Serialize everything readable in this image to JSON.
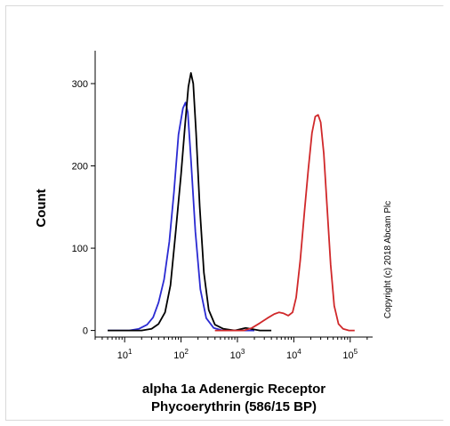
{
  "chart_data": {
    "type": "line",
    "title": "",
    "xlabel_lines": [
      "alpha 1a Adenergic Receptor",
      "Phycoerythrin (586/15 BP)"
    ],
    "ylabel": "Count",
    "x_scale": "log",
    "xlim": [
      3,
      250000
    ],
    "ylim": [
      -8,
      340
    ],
    "x_ticks": [
      {
        "value": 10,
        "base": "10",
        "exp": "1"
      },
      {
        "value": 100,
        "base": "10",
        "exp": "2"
      },
      {
        "value": 1000,
        "base": "10",
        "exp": "3"
      },
      {
        "value": 10000,
        "base": "10",
        "exp": "4"
      },
      {
        "value": 100000,
        "base": "10",
        "exp": "5"
      }
    ],
    "y_ticks": [
      0,
      100,
      200,
      300
    ],
    "grid": false,
    "annotation": "Copyright (c) 2018 Abcam Plc",
    "series": [
      {
        "color": "#2a2ad2",
        "points": [
          [
            5,
            0
          ],
          [
            12,
            0
          ],
          [
            18,
            2
          ],
          [
            25,
            7
          ],
          [
            32,
            16
          ],
          [
            40,
            34
          ],
          [
            50,
            62
          ],
          [
            62,
            108
          ],
          [
            75,
            168
          ],
          [
            90,
            238
          ],
          [
            108,
            270
          ],
          [
            120,
            277
          ],
          [
            132,
            265
          ],
          [
            150,
            208
          ],
          [
            180,
            120
          ],
          [
            220,
            50
          ],
          [
            280,
            15
          ],
          [
            380,
            3
          ],
          [
            550,
            0
          ],
          [
            900,
            0
          ],
          [
            2000,
            0
          ]
        ]
      },
      {
        "color": "#000000",
        "points": [
          [
            5,
            0
          ],
          [
            20,
            0
          ],
          [
            30,
            2
          ],
          [
            40,
            8
          ],
          [
            52,
            22
          ],
          [
            65,
            55
          ],
          [
            80,
            118
          ],
          [
            100,
            190
          ],
          [
            118,
            250
          ],
          [
            135,
            296
          ],
          [
            150,
            313
          ],
          [
            165,
            300
          ],
          [
            185,
            240
          ],
          [
            215,
            150
          ],
          [
            255,
            70
          ],
          [
            310,
            25
          ],
          [
            400,
            7
          ],
          [
            560,
            2
          ],
          [
            900,
            0
          ],
          [
            1400,
            3
          ],
          [
            2500,
            0
          ],
          [
            4000,
            0
          ]
        ]
      },
      {
        "color": "#d0282a",
        "points": [
          [
            400,
            0
          ],
          [
            1300,
            0
          ],
          [
            1800,
            3
          ],
          [
            2500,
            9
          ],
          [
            3400,
            15
          ],
          [
            4500,
            20
          ],
          [
            5500,
            22
          ],
          [
            6500,
            21
          ],
          [
            8000,
            18
          ],
          [
            9500,
            22
          ],
          [
            11000,
            40
          ],
          [
            13000,
            85
          ],
          [
            15500,
            145
          ],
          [
            18000,
            195
          ],
          [
            21000,
            240
          ],
          [
            24000,
            260
          ],
          [
            27000,
            262
          ],
          [
            30000,
            253
          ],
          [
            34000,
            215
          ],
          [
            39000,
            150
          ],
          [
            45000,
            80
          ],
          [
            52000,
            30
          ],
          [
            62000,
            8
          ],
          [
            75000,
            2
          ],
          [
            95000,
            0
          ],
          [
            120000,
            0
          ]
        ]
      }
    ]
  }
}
